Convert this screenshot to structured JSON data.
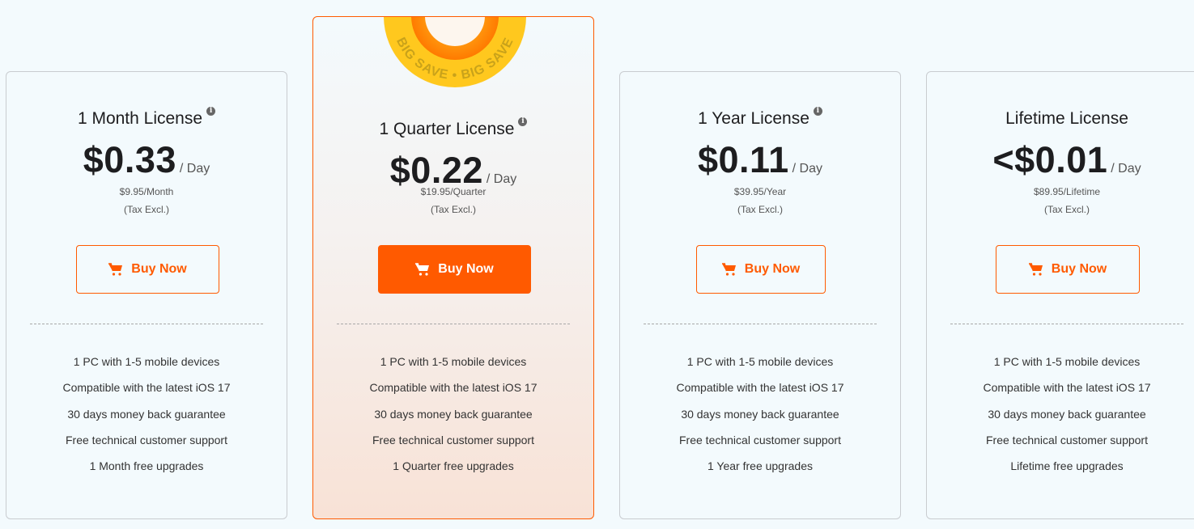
{
  "colors": {
    "accent": "#ff5a00",
    "badge_yellow": "#ffc81e",
    "badge_orange": "#ff7a00",
    "background": "#f3fafd"
  },
  "badge": {
    "text": "BIG SAVE • BIG SAVE"
  },
  "plans": [
    {
      "title": "1 Month License",
      "info_icon": true,
      "price": "$0.33",
      "unit": "/ Day",
      "billing": "$9.95/Month",
      "tax": "(Tax Excl.)",
      "button": "Buy Now",
      "highlighted": false,
      "features": [
        "1 PC with 1-5 mobile devices",
        "Compatible with the latest iOS 17",
        "30 days money back guarantee",
        "Free technical customer support",
        "1 Month free upgrades"
      ]
    },
    {
      "title": "1 Quarter License",
      "info_icon": true,
      "price": "$0.22",
      "unit": "/ Day",
      "billing": "$19.95/Quarter",
      "tax": "(Tax Excl.)",
      "button": "Buy Now",
      "highlighted": true,
      "features": [
        "1 PC with 1-5 mobile devices",
        "Compatible with the latest iOS 17",
        "30 days money back guarantee",
        "Free technical customer support",
        "1 Quarter free upgrades"
      ]
    },
    {
      "title": "1 Year License",
      "info_icon": true,
      "price": "$0.11",
      "unit": "/ Day",
      "billing": "$39.95/Year",
      "tax": "(Tax Excl.)",
      "button": "Buy Now",
      "highlighted": false,
      "features": [
        "1 PC with 1-5 mobile devices",
        "Compatible with the latest iOS 17",
        "30 days money back guarantee",
        "Free technical customer support",
        "1 Year free upgrades"
      ]
    },
    {
      "title": "Lifetime License",
      "info_icon": false,
      "price": "<$0.01",
      "unit": "/ Day",
      "billing": "$89.95/Lifetime",
      "tax": "(Tax Excl.)",
      "button": "Buy Now",
      "highlighted": false,
      "features": [
        "1 PC with 1-5 mobile devices",
        "Compatible with the latest iOS 17",
        "30 days money back guarantee",
        "Free technical customer support",
        "Lifetime free upgrades"
      ]
    }
  ]
}
